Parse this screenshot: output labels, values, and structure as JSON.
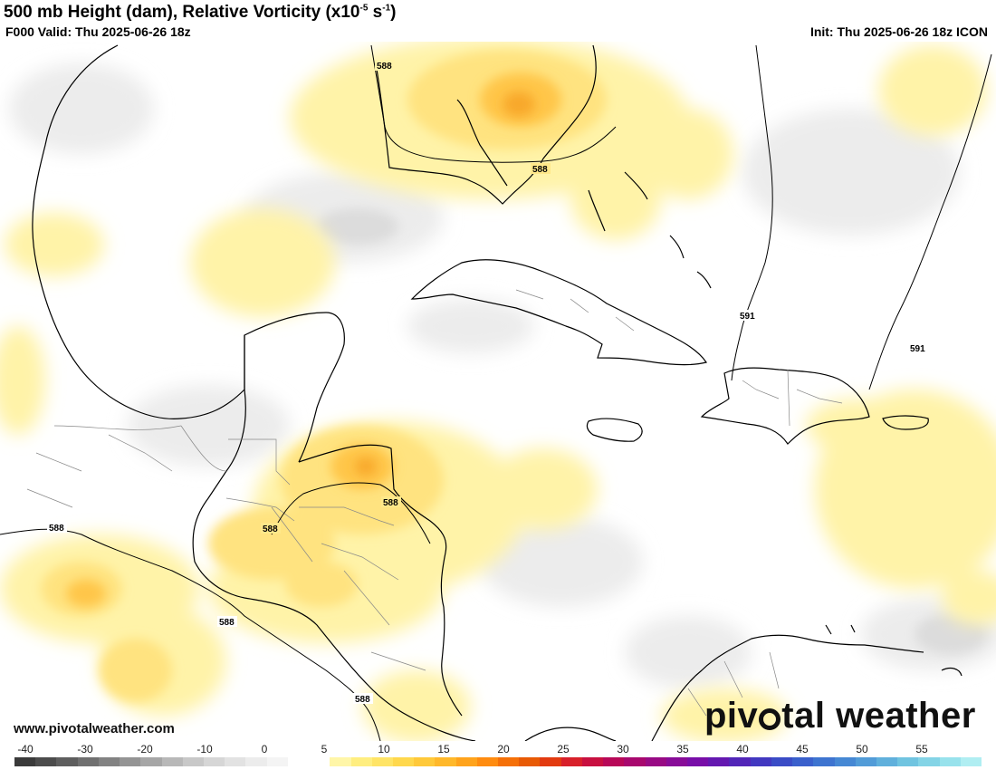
{
  "header": {
    "title_main": "500 mb Height (dam), Relative Vorticity (x10",
    "title_exp": "-5",
    "title_mid": " s",
    "title_exp2": "-1",
    "title_end": ")",
    "valid": "F000 Valid: Thu 2025-06-26 18z",
    "init": "Init: Thu 2025-06-26 18z ICON"
  },
  "footer": {
    "website": "www.pivotalweather.com",
    "logo_left": "piv",
    "logo_right": "tal weather"
  },
  "contour_labels": [
    "588",
    "588",
    "588",
    "588",
    "588",
    "588",
    "588",
    "591",
    "591"
  ],
  "colorbar": {
    "ticks": [
      "-40",
      "-30",
      "-20",
      "-10",
      "0",
      "5",
      "10",
      "15",
      "20",
      "25",
      "30",
      "35",
      "40",
      "45",
      "50",
      "55"
    ],
    "colors": [
      "#3a3a3a",
      "#4c4c4c",
      "#5e5e5e",
      "#707070",
      "#828282",
      "#949494",
      "#a6a6a6",
      "#b8b8b8",
      "#c8c8c8",
      "#d6d6d6",
      "#e2e2e2",
      "#ececec",
      "#f4f4f4",
      "#ffffff",
      "#ffffff",
      "#fff6a8",
      "#ffee80",
      "#ffe466",
      "#ffd84d",
      "#ffc93a",
      "#ffb82a",
      "#ffa31c",
      "#ff8c10",
      "#f57008",
      "#e85a05",
      "#e23a10",
      "#d8202a",
      "#c81040",
      "#b80858",
      "#a8086e",
      "#980a84",
      "#880c98",
      "#780ea8",
      "#6418b0",
      "#5226b8",
      "#4238c0",
      "#3a4cc6",
      "#3a60cc",
      "#3e74d0",
      "#4688d4",
      "#529cd8",
      "#60b0dc",
      "#70c4e0",
      "#84d4e6",
      "#98e2ec",
      "#b0eef2"
    ]
  },
  "map_colors": {
    "light_yellow": "#fff2a6",
    "yellow": "#ffe27a",
    "orange": "#ffc44a",
    "dark_orange": "#f7a426",
    "gray": "#ebebeb",
    "coast": "#000000"
  }
}
